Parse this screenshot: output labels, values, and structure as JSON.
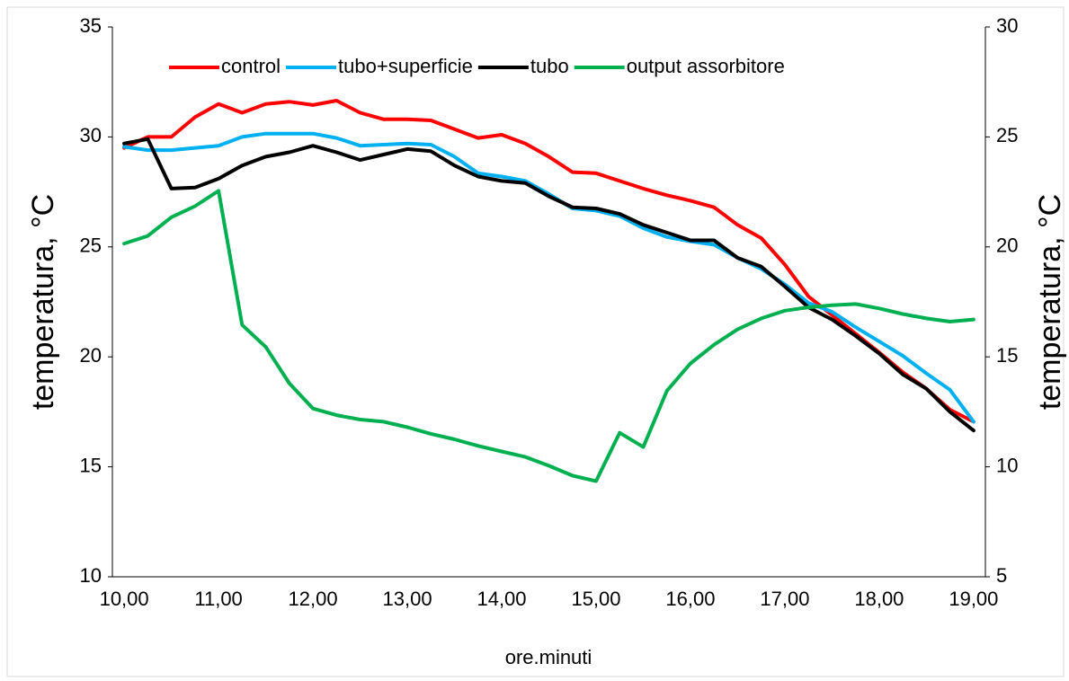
{
  "chart_data": {
    "type": "line",
    "xlabel": "ore.minuti",
    "ylabel": "temperatura, °C",
    "y2label": "temperatura, °C",
    "categories": [
      "10,00",
      null,
      null,
      null,
      "11,00",
      null,
      null,
      null,
      "12,00",
      null,
      null,
      null,
      "13,00",
      null,
      null,
      null,
      "14,00",
      null,
      null,
      null,
      "15,00",
      null,
      null,
      null,
      "16,00",
      null,
      null,
      null,
      "17,00",
      null,
      null,
      null,
      "18,00",
      null,
      null,
      null,
      "19,00"
    ],
    "ylim": [
      10,
      35
    ],
    "yticks": [
      10,
      15,
      20,
      25,
      30,
      35
    ],
    "y2lim": [
      5,
      30
    ],
    "y2ticks": [
      5,
      10,
      15,
      20,
      25,
      30
    ],
    "legend": "top",
    "series": [
      {
        "name": "control",
        "color": "#ff0000",
        "values": [
          29.5,
          30.0,
          30.0,
          30.9,
          31.5,
          31.1,
          31.5,
          31.6,
          31.45,
          31.65,
          31.1,
          30.8,
          30.8,
          30.75,
          30.35,
          29.95,
          30.1,
          29.7,
          29.1,
          28.4,
          28.35,
          28.0,
          27.65,
          27.35,
          27.1,
          26.8,
          26.0,
          25.4,
          24.2,
          22.75,
          21.9,
          21.05,
          20.2,
          19.3,
          18.55,
          17.6,
          17.05
        ]
      },
      {
        "name": "tubo+superficie",
        "color": "#00b0f0",
        "values": [
          29.55,
          29.4,
          29.4,
          29.5,
          29.6,
          30.0,
          30.15,
          30.15,
          30.15,
          29.95,
          29.6,
          29.65,
          29.7,
          29.65,
          29.1,
          28.35,
          28.2,
          28.0,
          27.4,
          26.75,
          26.65,
          26.4,
          25.85,
          25.45,
          25.25,
          25.1,
          24.5,
          24.0,
          23.3,
          22.45,
          22.05,
          21.35,
          20.7,
          20.05,
          19.25,
          18.5,
          17.05
        ]
      },
      {
        "name": "tubo",
        "color": "#000000",
        "values": [
          29.7,
          29.9,
          27.65,
          27.7,
          28.1,
          28.7,
          29.1,
          29.3,
          29.6,
          29.3,
          28.95,
          29.2,
          29.45,
          29.35,
          28.7,
          28.2,
          28.0,
          27.9,
          27.3,
          26.8,
          26.75,
          26.5,
          26.0,
          25.65,
          25.3,
          25.3,
          24.5,
          24.1,
          23.2,
          22.25,
          21.7,
          20.95,
          20.15,
          19.2,
          18.55,
          17.5,
          16.65
        ]
      },
      {
        "name": "output assorbitore",
        "color": "#00b050",
        "axis": "y2",
        "values": [
          20.15,
          20.5,
          21.35,
          21.85,
          22.55,
          16.45,
          15.45,
          13.8,
          12.65,
          12.35,
          12.15,
          12.05,
          11.8,
          11.5,
          11.25,
          10.95,
          10.7,
          10.45,
          10.05,
          9.6,
          9.35,
          11.55,
          10.9,
          13.45,
          14.7,
          15.55,
          16.25,
          16.75,
          17.1,
          17.25,
          17.35,
          17.4,
          17.2,
          16.95,
          16.75,
          16.6,
          16.7
        ]
      }
    ]
  }
}
